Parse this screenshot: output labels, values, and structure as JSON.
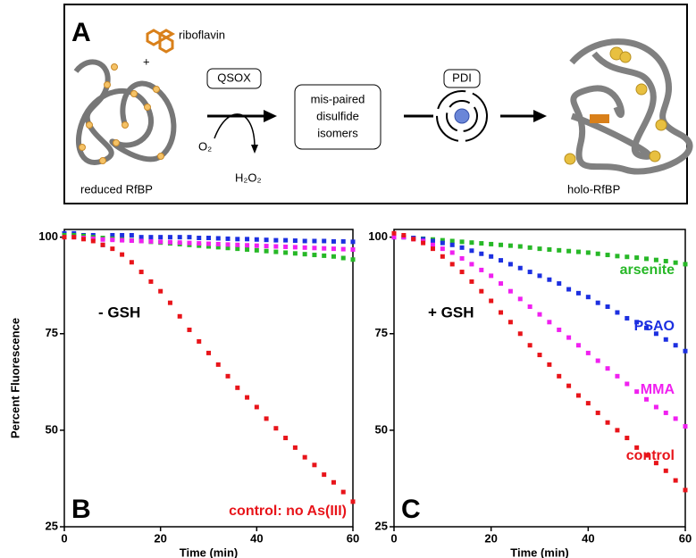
{
  "diagram": {
    "panel_label": "A",
    "ligand": "riboflavin",
    "plus": "+",
    "enzyme1": "QSOX",
    "intermediate": [
      "mis-paired",
      "disulfide",
      "isomers"
    ],
    "enzyme2": "PDI",
    "oxygen": "O₂",
    "peroxide": "H₂O₂",
    "start": "reduced RfBP",
    "end": "holo-RfBP"
  },
  "chart_data": [
    {
      "type": "scatter",
      "panel_label": "B",
      "annotation": "- GSH",
      "xlabel": "Time (min)",
      "ylabel": "Percent Fluorescence",
      "xlim": [
        0,
        60
      ],
      "xticks": [
        0,
        20,
        40,
        60
      ],
      "ylim": [
        25,
        102
      ],
      "yticks": [
        25,
        50,
        75,
        100
      ],
      "x": [
        0,
        2,
        4,
        6,
        8,
        10,
        12,
        14,
        16,
        18,
        20,
        22,
        24,
        26,
        28,
        30,
        32,
        34,
        36,
        38,
        40,
        42,
        44,
        46,
        48,
        50,
        52,
        54,
        56,
        58,
        60
      ],
      "series": [
        {
          "color": "#1c2fe0",
          "values": [
            101,
            101,
            100.5,
            100.5,
            98,
            100.5,
            100.5,
            100.5,
            100,
            100,
            100,
            100,
            100,
            100,
            99.8,
            99.8,
            99.7,
            99.6,
            99.5,
            99.5,
            99.4,
            99.3,
            99.2,
            99.2,
            99.1,
            99,
            99,
            99,
            98.9,
            98.9,
            98.8
          ]
        },
        {
          "color": "#27b827",
          "values": [
            100.5,
            100.5,
            100.3,
            100,
            99.8,
            99.6,
            99.4,
            99.2,
            99,
            98.8,
            98.6,
            98.4,
            98.2,
            98,
            97.8,
            97.6,
            97.4,
            97.2,
            97,
            96.8,
            96.6,
            96.4,
            96.2,
            96,
            95.8,
            95.6,
            95.4,
            95.2,
            95,
            94.6,
            94.2
          ]
        },
        {
          "color": "#f020f0",
          "values": [
            100,
            100,
            99.8,
            99.6,
            99.4,
            99.3,
            99.2,
            99.1,
            99,
            98.9,
            98.8,
            98.7,
            98.6,
            98.5,
            98.4,
            98.3,
            98.2,
            98.1,
            98,
            97.9,
            97.8,
            97.7,
            97.6,
            97.5,
            97.4,
            97.3,
            97.2,
            97.1,
            97,
            96.9,
            96.8
          ]
        },
        {
          "name": "control: no As(III)",
          "color": "#e8141a",
          "values": [
            100,
            100,
            99.5,
            99,
            98,
            97,
            95.5,
            93.5,
            91,
            88.5,
            86,
            83,
            79.5,
            76,
            73,
            70,
            67,
            64,
            61,
            58.5,
            56,
            53,
            50.5,
            48,
            45.5,
            43,
            41,
            38.5,
            36.5,
            34,
            31.5
          ]
        }
      ]
    },
    {
      "type": "scatter",
      "panel_label": "C",
      "annotation": "+ GSH",
      "xlabel": "Time (min)",
      "xlim": [
        0,
        60
      ],
      "xticks": [
        0,
        20,
        40,
        60
      ],
      "ylim": [
        25,
        102
      ],
      "yticks": [
        25,
        50,
        75,
        100
      ],
      "x": [
        0,
        2,
        4,
        6,
        8,
        10,
        12,
        14,
        16,
        18,
        20,
        22,
        24,
        26,
        28,
        30,
        32,
        34,
        36,
        38,
        40,
        42,
        44,
        46,
        48,
        50,
        52,
        54,
        56,
        58,
        60
      ],
      "series": [
        {
          "name": "arsenite",
          "color": "#27b827",
          "values": [
            100,
            100,
            99.8,
            99.6,
            99.4,
            99.2,
            99,
            98.8,
            98.6,
            98.4,
            98.2,
            98,
            97.8,
            97.6,
            97.3,
            97,
            96.8,
            96.6,
            96.4,
            96.2,
            96,
            95.7,
            95.4,
            95.1,
            94.9,
            94.7,
            94.4,
            94.1,
            93.8,
            93.4,
            93
          ]
        },
        {
          "name": "PSAO",
          "color": "#1c2fe0",
          "values": [
            100,
            100,
            99.8,
            99.5,
            99,
            98.5,
            98,
            97.3,
            96.5,
            95.7,
            95,
            94,
            93,
            92,
            91,
            90,
            89,
            88,
            86.5,
            85.5,
            84.5,
            83,
            82,
            80.5,
            79,
            78,
            76.5,
            75,
            73.5,
            72,
            70.5
          ]
        },
        {
          "name": "MMA",
          "color": "#f020f0",
          "values": [
            100,
            100,
            99.5,
            99,
            98,
            97,
            96,
            94.5,
            93,
            91.5,
            90,
            88,
            86,
            84,
            82,
            80,
            78,
            76,
            74,
            72,
            70,
            68,
            66,
            64,
            62,
            60,
            58,
            56,
            54.5,
            53,
            51
          ]
        },
        {
          "name": "control",
          "color": "#e8141a",
          "values": [
            101,
            100.5,
            99.5,
            98.5,
            97,
            95,
            93,
            91,
            88.5,
            86,
            83.5,
            80.5,
            78,
            75,
            72,
            69.5,
            67,
            64,
            61.5,
            59,
            57,
            54.5,
            52,
            50,
            48,
            45.5,
            43.5,
            41.5,
            39.5,
            37,
            34.5
          ]
        }
      ]
    }
  ]
}
